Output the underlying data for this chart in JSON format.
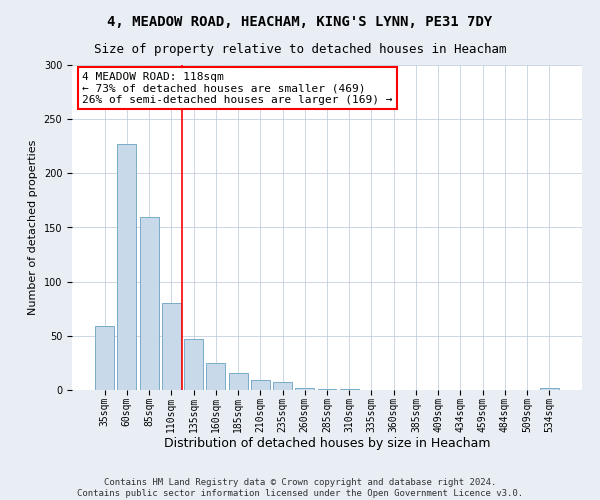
{
  "title1": "4, MEADOW ROAD, HEACHAM, KING'S LYNN, PE31 7DY",
  "title2": "Size of property relative to detached houses in Heacham",
  "xlabel": "Distribution of detached houses by size in Heacham",
  "ylabel": "Number of detached properties",
  "categories": [
    "35sqm",
    "60sqm",
    "85sqm",
    "110sqm",
    "135sqm",
    "160sqm",
    "185sqm",
    "210sqm",
    "235sqm",
    "260sqm",
    "285sqm",
    "310sqm",
    "335sqm",
    "360sqm",
    "385sqm",
    "409sqm",
    "434sqm",
    "459sqm",
    "484sqm",
    "509sqm",
    "534sqm"
  ],
  "values": [
    59,
    227,
    160,
    80,
    47,
    25,
    16,
    9,
    7,
    2,
    1,
    1,
    0,
    0,
    0,
    0,
    0,
    0,
    0,
    0,
    2
  ],
  "bar_color": "#c8daea",
  "bar_edge_color": "#7aacc8",
  "annotation_text": "4 MEADOW ROAD: 118sqm\n← 73% of detached houses are smaller (469)\n26% of semi-detached houses are larger (169) →",
  "annotation_box_color": "white",
  "annotation_box_edge_color": "red",
  "vline_color": "red",
  "vline_x": 3.5,
  "ylim": [
    0,
    300
  ],
  "yticks": [
    0,
    50,
    100,
    150,
    200,
    250,
    300
  ],
  "footer1": "Contains HM Land Registry data © Crown copyright and database right 2024.",
  "footer2": "Contains public sector information licensed under the Open Government Licence v3.0.",
  "bg_color": "#e8eef4",
  "plot_bg_color": "white",
  "grid_color": "#b8c8d8",
  "title1_fontsize": 10,
  "title2_fontsize": 9,
  "ylabel_fontsize": 8,
  "xlabel_fontsize": 9,
  "tick_fontsize": 7,
  "footer_fontsize": 6.5,
  "annot_fontsize": 8
}
